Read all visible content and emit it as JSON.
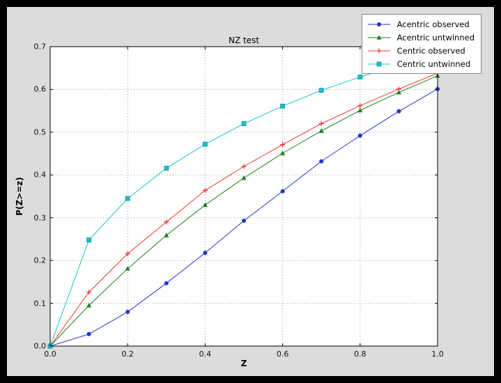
{
  "chart_data": {
    "type": "line",
    "title": "NZ test",
    "xlabel": "Z",
    "ylabel": "P(Z>=z)",
    "xlim": [
      0.0,
      1.0
    ],
    "ylim": [
      0.0,
      0.7
    ],
    "grid": true,
    "legend_position": "upper right",
    "xticks": [
      "0.0",
      "0.2",
      "0.4",
      "0.6",
      "0.8",
      "1.0"
    ],
    "yticks": [
      "0.0",
      "0.1",
      "0.2",
      "0.3",
      "0.4",
      "0.5",
      "0.6",
      "0.7"
    ],
    "x": [
      0.0,
      0.1,
      0.2,
      0.3,
      0.4,
      0.5,
      0.6,
      0.7,
      0.8,
      0.9,
      1.0
    ],
    "series": [
      {
        "name": "Acentric observed",
        "color": "#2233cc",
        "marker": "circle",
        "values": [
          0.0,
          0.028,
          0.08,
          0.147,
          0.218,
          0.293,
          0.362,
          0.432,
          0.492,
          0.549,
          0.601
        ]
      },
      {
        "name": "Acentric untwinned",
        "color": "#1f7d1f",
        "marker": "triangle",
        "values": [
          0.0,
          0.095,
          0.181,
          0.259,
          0.33,
          0.393,
          0.451,
          0.503,
          0.551,
          0.593,
          0.632
        ]
      },
      {
        "name": "Centric observed",
        "color": "#ee3333",
        "marker": "plus",
        "values": [
          0.0,
          0.126,
          0.216,
          0.29,
          0.364,
          0.42,
          0.471,
          0.52,
          0.562,
          0.601,
          0.638
        ]
      },
      {
        "name": "Centric untwinned",
        "color": "#17c4cc",
        "marker": "square",
        "values": [
          0.0,
          0.248,
          0.345,
          0.416,
          0.472,
          0.52,
          0.561,
          0.598,
          0.629,
          0.657,
          0.683
        ]
      }
    ]
  }
}
